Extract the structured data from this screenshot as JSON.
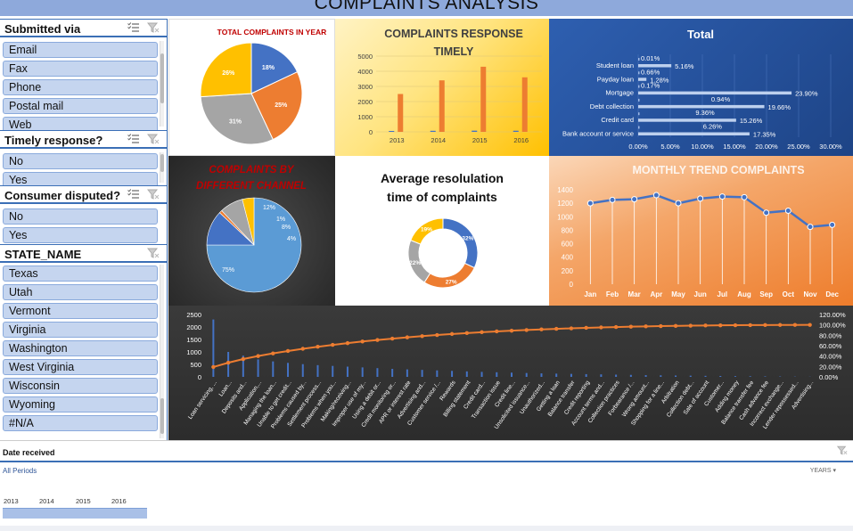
{
  "title": "COMPLAINTS ANALYSIS",
  "slicers": {
    "submitted_via": {
      "title": "Submitted via",
      "items": [
        "Email",
        "Fax",
        "Phone",
        "Postal mail",
        "Web"
      ]
    },
    "timely_response": {
      "title": "Timely response?",
      "items": [
        "No",
        "Yes"
      ]
    },
    "consumer_disputed": {
      "title": "Consumer disputed?",
      "items": [
        "No",
        "Yes"
      ]
    },
    "state_name": {
      "title": "STATE_NAME",
      "items": [
        "Texas",
        "Utah",
        "Vermont",
        "Virginia",
        "Washington",
        "West Virginia",
        "Wisconsin",
        "Wyoming",
        "#N/A"
      ]
    }
  },
  "date_filter": {
    "title": "Date received",
    "all_periods": "All Periods",
    "level": "YEARS",
    "years": [
      "2013",
      "2014",
      "2015",
      "2016"
    ]
  },
  "colors": {
    "blue": "#4472c4",
    "orange": "#ed7d31",
    "gray": "#a5a5a5",
    "yellow": "#ffc000",
    "lightblue": "#5b9bd5",
    "titlebar": "#8ea9db"
  },
  "chart_data": [
    {
      "type": "pie",
      "title": "TOTAL COMPLAINTS IN YEAR",
      "categories": [
        "2013",
        "2014",
        "2015",
        "2016"
      ],
      "values": [
        18,
        25,
        31,
        26
      ],
      "labels": [
        "18%",
        "25%",
        "31%",
        "26%"
      ]
    },
    {
      "type": "bar",
      "title": "COMPLAINTS RESPONSE TIMELY",
      "categories": [
        "2013",
        "2014",
        "2015",
        "2016"
      ],
      "series": [
        {
          "values": [
            60,
            70,
            80,
            75
          ]
        },
        {
          "values": [
            2500,
            3400,
            4300,
            3600
          ]
        }
      ],
      "ylim": [
        0,
        5000
      ],
      "yticks": [
        "0",
        "1000",
        "2000",
        "3000",
        "4000",
        "5000"
      ]
    },
    {
      "type": "bar",
      "title": "Total",
      "orientation": "horizontal",
      "categories": [
        "Student loan",
        "Payday loan",
        "Mortgage",
        "Debt collection",
        "Credit card",
        "Bank account or service"
      ],
      "values": [
        5.16,
        1.28,
        23.9,
        19.66,
        15.26,
        17.35
      ],
      "labels": [
        "5.16%",
        "1.28%",
        "23.90%",
        "19.66%",
        "15.26%",
        "17.35%"
      ],
      "extra_labels": [
        "0.01%",
        "0.66%",
        "0.17%",
        "0.94%",
        "9.36%",
        "6.26%"
      ],
      "xticks": [
        "0.00%",
        "5.00%",
        "10.00%",
        "15.00%",
        "20.00%",
        "25.00%",
        "30.00%"
      ],
      "xlim": [
        0,
        30
      ]
    },
    {
      "type": "pie",
      "title": "COMPLAINTS BY DIFFERENT CHANNEL",
      "values": [
        75,
        12,
        1,
        8,
        4
      ],
      "labels": [
        "75%",
        "12%",
        "1%",
        "8%",
        "4%"
      ]
    },
    {
      "type": "pie",
      "title": "Average resolulation time of complaints",
      "donut": true,
      "values": [
        32,
        27,
        22,
        19
      ],
      "labels": [
        "32%",
        "27%",
        "22%",
        "19%"
      ]
    },
    {
      "type": "line",
      "title": "MONTHLY TREND COMPLAINTS",
      "categories": [
        "Jan",
        "Feb",
        "Mar",
        "Apr",
        "May",
        "Jun",
        "Jul",
        "Aug",
        "Sep",
        "Oct",
        "Nov",
        "Dec"
      ],
      "values": [
        1200,
        1250,
        1260,
        1320,
        1200,
        1270,
        1300,
        1290,
        1060,
        1090,
        850,
        880
      ],
      "ylim": [
        0,
        1400
      ],
      "yticks": [
        "0",
        "200",
        "400",
        "600",
        "800",
        "1000",
        "1200",
        "1400"
      ]
    },
    {
      "type": "bar",
      "title": "",
      "pareto": true,
      "categories": [
        "Loan servicing, ...",
        "Loan...",
        "Deposits and...",
        "Application,...",
        "Managing the loan...",
        "Unable to get credit...",
        "Problems caused by...",
        "Settlement process...",
        "Problems when you...",
        "Making/receiving...",
        "Improper use of my...",
        "Using a debit or...",
        "Credit monitoring or...",
        "APR or interest rate",
        "Advertising and...",
        "Customer service /...",
        "Rewards",
        "Billing statement",
        "Credit card...",
        "Transaction issue",
        "Credit line...",
        "Unsolicited issuance...",
        "Unauthorized...",
        "Getting a loan",
        "Balance transfer",
        "Credit reporting",
        "Account terms and...",
        "Collection practices",
        "Forbearance /...",
        "Wrong amount...",
        "Shopping for a line...",
        "Arbitration",
        "Collection debt...",
        "Sale of account",
        "Customer...",
        "Adding money",
        "Balance transfer fee",
        "Cash advance fee",
        "Incorrect exchange...",
        "Lender repossessed...",
        "Advertising..."
      ],
      "values": [
        2300,
        1000,
        850,
        700,
        620,
        560,
        510,
        470,
        440,
        410,
        380,
        350,
        320,
        300,
        280,
        260,
        240,
        220,
        200,
        185,
        170,
        155,
        140,
        130,
        120,
        110,
        100,
        90,
        80,
        70,
        62,
        55,
        48,
        42,
        36,
        30,
        25,
        20,
        15,
        10,
        6
      ],
      "ylim": [
        0,
        2500
      ],
      "yticks": [
        "0",
        "500",
        "1000",
        "1500",
        "2000",
        "2500"
      ],
      "y2ticks": [
        "0.00%",
        "20.00%",
        "40.00%",
        "60.00%",
        "80.00%",
        "100.00%",
        "120.00%"
      ]
    }
  ]
}
